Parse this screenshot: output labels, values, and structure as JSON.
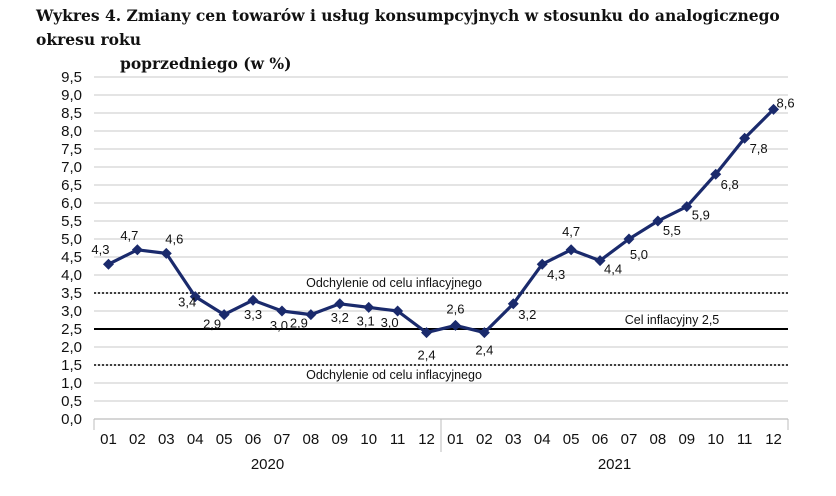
{
  "chart_data": {
    "type": "line",
    "title_line1": "Wykres 4. Zmiany cen towarów i usług konsumpcyjnych w stosunku do analogicznego okresu roku",
    "title_line2": "poprzedniego (w %)",
    "categories": [
      "01",
      "02",
      "03",
      "04",
      "05",
      "06",
      "07",
      "08",
      "09",
      "10",
      "11",
      "12",
      "01",
      "02",
      "03",
      "04",
      "05",
      "06",
      "07",
      "08",
      "09",
      "10",
      "11",
      "12"
    ],
    "years": [
      "2020",
      "2021"
    ],
    "series": [
      {
        "values": [
          4.3,
          4.7,
          4.6,
          3.4,
          2.9,
          3.3,
          3.0,
          2.9,
          3.2,
          3.1,
          3.0,
          2.4,
          2.6,
          2.4,
          3.2,
          4.3,
          4.7,
          4.4,
          5.0,
          5.5,
          5.9,
          6.8,
          7.8,
          8.6
        ]
      }
    ],
    "data_labels": [
      "4,3",
      "4,7",
      "4,6",
      "3,4",
      "2,9",
      "3,3",
      "3,0",
      "2,9",
      "3,2",
      "3,1",
      "3,0",
      "2,4",
      "2,6",
      "2,4",
      "3,2",
      "4,3",
      "4,7",
      "4,4",
      "5,0",
      "5,5",
      "5,9",
      "6,8",
      "7,8",
      "8,6"
    ],
    "ylim": [
      0,
      9.5
    ],
    "yticks": [
      "0,0",
      "0,5",
      "1,0",
      "1,5",
      "2,0",
      "2,5",
      "3,0",
      "3,5",
      "4,0",
      "4,5",
      "5,0",
      "5,5",
      "6,0",
      "6,5",
      "7,0",
      "7,5",
      "8,0",
      "8,5",
      "9,0",
      "9,5"
    ],
    "reference_lines": [
      {
        "value": 3.5,
        "style": "dotted",
        "label": "Odchylenie od celu inflacyjnego"
      },
      {
        "value": 2.5,
        "style": "solid",
        "label": "Cel inflacyjny 2,5"
      },
      {
        "value": 1.5,
        "style": "dotted",
        "label": "Odchylenie od celu inflacyjnego"
      }
    ],
    "grid": true,
    "colors": {
      "line": "#1a2a6c",
      "grid": "#c8c8c8",
      "reference": "#000000"
    }
  }
}
